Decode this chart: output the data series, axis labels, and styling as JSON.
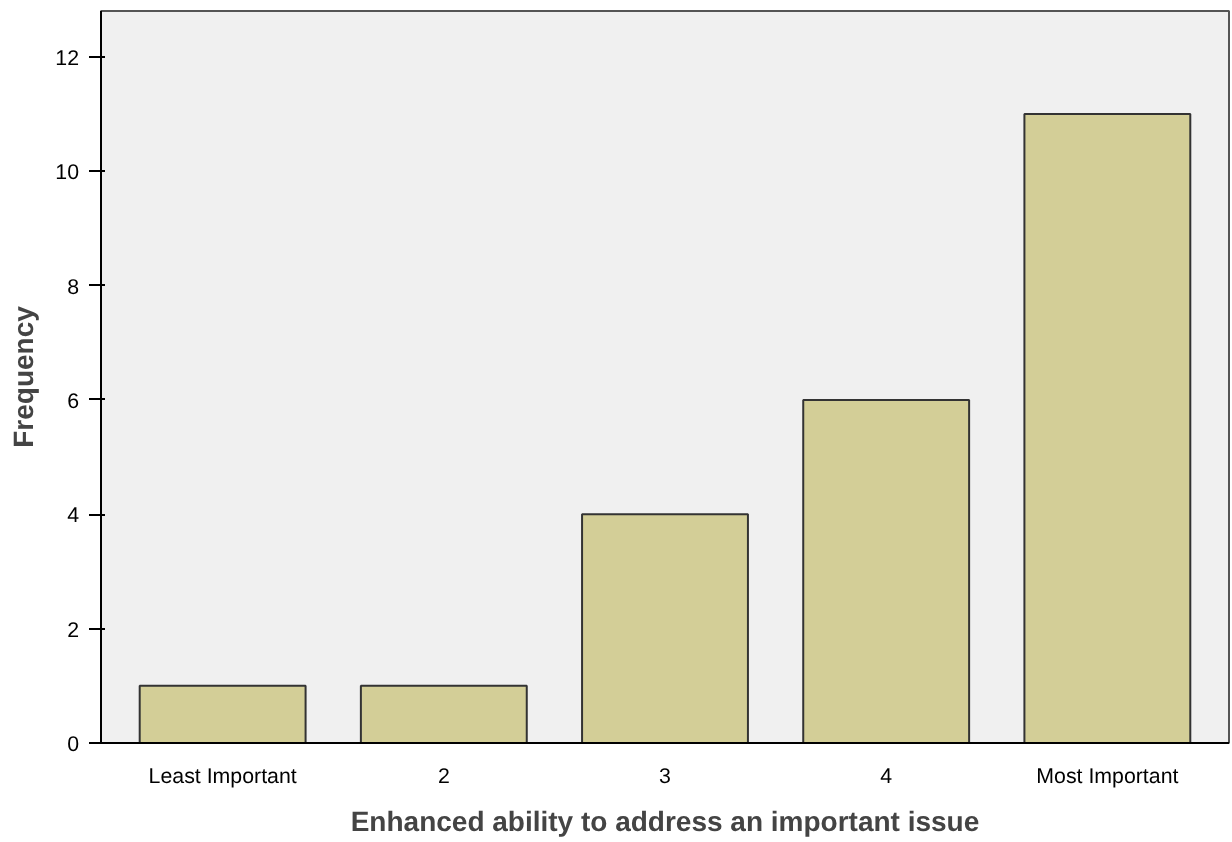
{
  "chart_data": {
    "type": "bar",
    "categories": [
      "Least Important",
      "2",
      "3",
      "4",
      "Most Important"
    ],
    "values": [
      1,
      1,
      4,
      6,
      11
    ],
    "color": "#d3ce97",
    "xlabel": "Enhanced ability to address an important issue",
    "ylabel": "Frequency",
    "ylim": [
      0,
      12.8
    ],
    "yticks": [
      0,
      2,
      4,
      6,
      8,
      10,
      12
    ]
  }
}
